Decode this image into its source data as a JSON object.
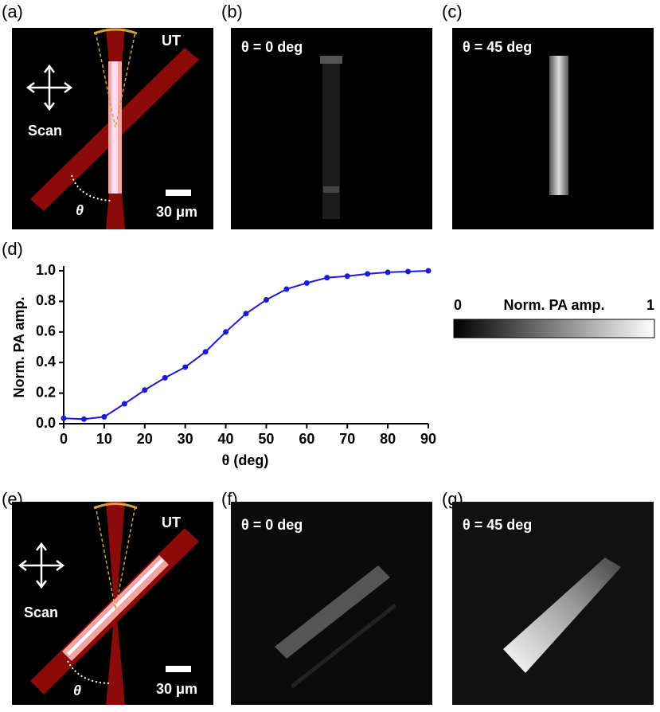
{
  "panel_a": {
    "label": "(a)",
    "probe": "UT",
    "scan": "Scan",
    "angle": "θ",
    "scale_bar": "30 μm"
  },
  "panel_b": {
    "label": "(b)",
    "title": "θ = 0 deg"
  },
  "panel_c": {
    "label": "(c)",
    "title": "θ = 45 deg"
  },
  "panel_e": {
    "label": "(e)",
    "probe": "UT",
    "scan": "Scan",
    "angle": "θ",
    "scale_bar": "30 μm"
  },
  "panel_f": {
    "label": "(f)",
    "title": "θ = 0 deg"
  },
  "panel_g": {
    "label": "(g)",
    "title": "θ = 45 deg"
  },
  "colorbar": {
    "title": "Norm. PA amp.",
    "min": 0,
    "max": 1
  },
  "chart_data": {
    "type": "line",
    "panel_label": "(d)",
    "x_label": "θ (deg)",
    "y_label": "Norm. PA amp.",
    "x": [
      0,
      5,
      10,
      15,
      20,
      25,
      30,
      35,
      40,
      45,
      50,
      55,
      60,
      65,
      70,
      75,
      80,
      85,
      90
    ],
    "series": [
      {
        "color": "#1a1adb",
        "values": [
          0.035,
          0.03,
          0.045,
          0.13,
          0.22,
          0.3,
          0.37,
          0.47,
          0.6,
          0.72,
          0.81,
          0.88,
          0.92,
          0.955,
          0.965,
          0.98,
          0.99,
          0.995,
          1.0
        ]
      }
    ],
    "xlim": [
      0,
      90
    ],
    "xticks": [
      0,
      10,
      20,
      30,
      40,
      50,
      60,
      70,
      80,
      90
    ],
    "ylim": [
      0,
      1.0
    ],
    "yticks": [
      {
        "value": 0,
        "label": "0.0"
      },
      0.2,
      0.4,
      0.6,
      0.8,
      {
        "value": 1.0,
        "label": "1.0"
      }
    ]
  }
}
